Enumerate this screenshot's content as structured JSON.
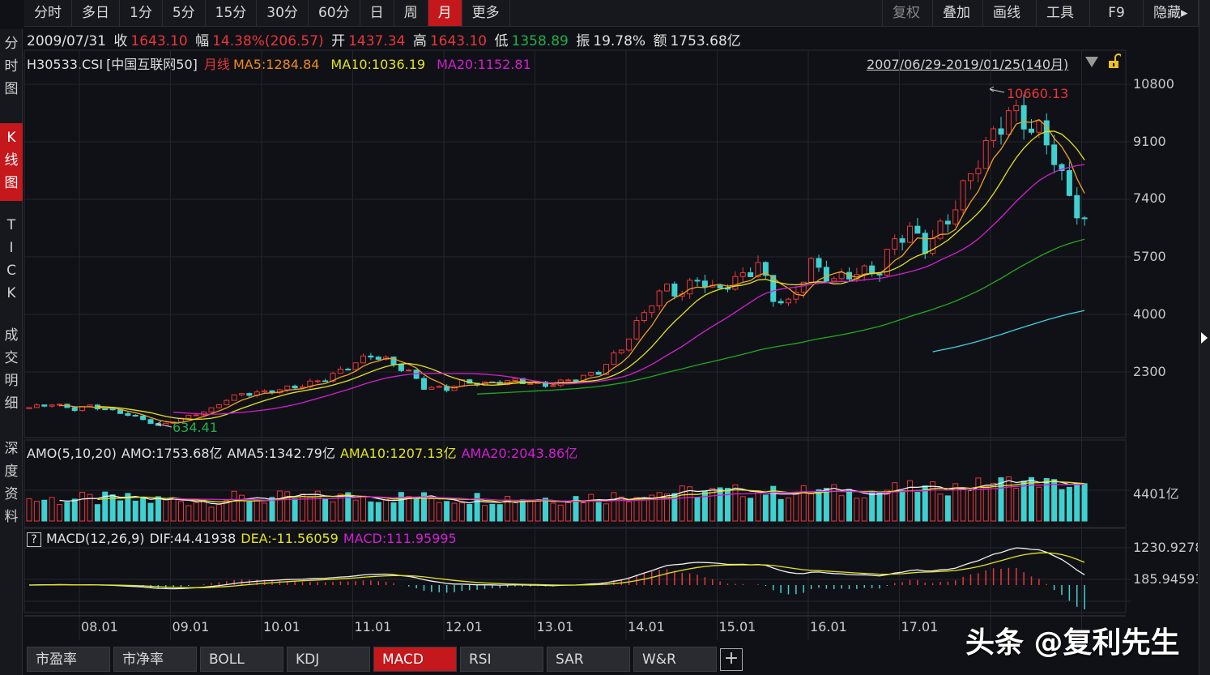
{
  "toolbar": {
    "periods": [
      "分时",
      "多日",
      "1分",
      "5分",
      "15分",
      "30分",
      "60分",
      "日",
      "周",
      "月",
      "更多"
    ],
    "active_period": "月",
    "tools": [
      "复权",
      "叠加",
      "画线",
      "工具",
      "F9",
      "隐藏▸"
    ]
  },
  "sidebar": {
    "items": [
      "分\n时\n图",
      "K\n线\n图",
      "T\nI\nC\nK",
      "成\n交\n明\n细",
      "深\n度\n资\n料"
    ],
    "active": "K线图"
  },
  "info": {
    "date": "2009/07/31",
    "close_label": "收",
    "close": "1643.10",
    "change_label": "幅",
    "change": "14.38%(206.57)",
    "open_label": "开",
    "open": "1437.34",
    "high_label": "高",
    "high": "1643.10",
    "low_label": "低",
    "low": "1358.89",
    "amplitude_label": "振",
    "amplitude": "19.78%",
    "amount_label": "额",
    "amount": "1753.68亿"
  },
  "chart": {
    "symbol": "H30533.CSI",
    "name": "[中国互联网50]",
    "period_label": "月线",
    "ma5": "MA5:1284.84",
    "ma10": "MA10:1036.19",
    "ma20": "MA20:1152.81",
    "range": "2007/06/29-2019/01/25(140月)",
    "max_label": "10660.13",
    "min_label": "634.41",
    "y_axis": [
      "10800",
      "9100",
      "7400",
      "5700",
      "4000",
      "2300"
    ],
    "y_axis_values": [
      10800,
      9100,
      7400,
      5700,
      4000,
      2300
    ],
    "colors": {
      "up": "#e8363a",
      "down": "#3fd0d0",
      "ma5": "#f0a020",
      "ma10": "#e4e41c",
      "ma20": "#d21fd2",
      "ma60": "#1faa1f",
      "ma120": "#3fd0e0",
      "dif": "#f0f0f0",
      "dea": "#e4e41c"
    },
    "close_keypoints": [
      [
        0,
        1250
      ],
      [
        3,
        1350
      ],
      [
        6,
        1200
      ],
      [
        8,
        1300
      ],
      [
        12,
        1100
      ],
      [
        15,
        900
      ],
      [
        17,
        700
      ],
      [
        19,
        850
      ],
      [
        24,
        1200
      ],
      [
        26,
        1500
      ],
      [
        28,
        1650
      ],
      [
        31,
        1700
      ],
      [
        36,
        1900
      ],
      [
        39,
        2100
      ],
      [
        42,
        2450
      ],
      [
        45,
        2800
      ],
      [
        47,
        2650
      ],
      [
        50,
        2300
      ],
      [
        52,
        1850
      ],
      [
        55,
        1800
      ],
      [
        57,
        2000
      ],
      [
        60,
        1950
      ],
      [
        64,
        2050
      ],
      [
        68,
        1900
      ],
      [
        72,
        2100
      ],
      [
        75,
        2300
      ],
      [
        78,
        3000
      ],
      [
        80,
        3700
      ],
      [
        82,
        4400
      ],
      [
        84,
        4800
      ],
      [
        86,
        4600
      ],
      [
        88,
        5100
      ],
      [
        90,
        4700
      ],
      [
        93,
        5000
      ],
      [
        95,
        5300
      ],
      [
        96,
        5500
      ],
      [
        98,
        4500
      ],
      [
        100,
        4300
      ],
      [
        103,
        5500
      ],
      [
        106,
        5000
      ],
      [
        108,
        5200
      ],
      [
        112,
        5300
      ],
      [
        114,
        6200
      ],
      [
        116,
        6500
      ],
      [
        118,
        6000
      ],
      [
        121,
        6800
      ],
      [
        123,
        7700
      ],
      [
        125,
        8600
      ],
      [
        127,
        9300
      ],
      [
        129,
        10000
      ],
      [
        131,
        9700
      ],
      [
        133,
        9400
      ],
      [
        135,
        8700
      ],
      [
        137,
        7400
      ],
      [
        139,
        6800
      ]
    ],
    "months": 140
  },
  "volume": {
    "title": "AMO(5,10,20)",
    "amo": "AMO:1753.68亿",
    "ama5": "AMA5:1342.79亿",
    "ama10": "AMA10:1207.13亿",
    "ama20": "AMA20:2043.86亿",
    "axis": "4401亿"
  },
  "macd": {
    "help": "?",
    "title": "MACD(12,26,9)",
    "dif": "DIF:44.41938",
    "dea": "DEA:-11.56059",
    "macd": "MACD:111.95995",
    "axis": [
      "1230.9278",
      "185.94593"
    ]
  },
  "x_axis": [
    "08.01",
    "09.01",
    "10.01",
    "11.01",
    "12.01",
    "13.01",
    "14.01",
    "15.01",
    "16.01",
    "17.01"
  ],
  "tabs": [
    "市盈率",
    "市净率",
    "BOLL",
    "KDJ",
    "MACD",
    "RSI",
    "SAR",
    "W&R"
  ],
  "active_tab": "MACD",
  "watermark": "头条 @复利先生"
}
